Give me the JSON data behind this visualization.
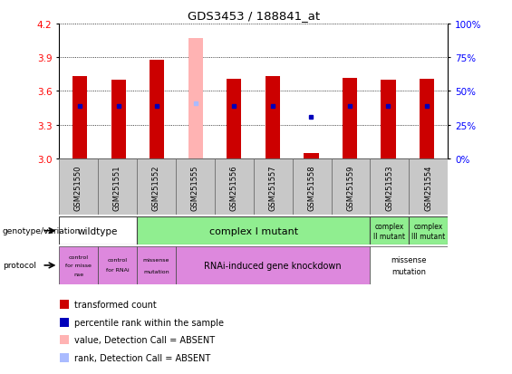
{
  "title": "GDS3453 / 188841_at",
  "samples": [
    "GSM251550",
    "GSM251551",
    "GSM251552",
    "GSM251555",
    "GSM251556",
    "GSM251557",
    "GSM251558",
    "GSM251559",
    "GSM251553",
    "GSM251554"
  ],
  "red_values": [
    3.73,
    3.7,
    3.88,
    4.07,
    3.71,
    3.73,
    3.05,
    3.72,
    3.7,
    3.71
  ],
  "blue_values": [
    3.47,
    3.47,
    3.47,
    3.49,
    3.47,
    3.47,
    3.37,
    3.47,
    3.47,
    3.47
  ],
  "absent": [
    false,
    false,
    false,
    true,
    false,
    false,
    false,
    false,
    false,
    false
  ],
  "ymin": 3.0,
  "ymax": 4.2,
  "yticks": [
    3.0,
    3.3,
    3.6,
    3.9,
    4.2
  ],
  "y2ticks": [
    0,
    25,
    50,
    75,
    100
  ],
  "bar_color_normal": "#cc0000",
  "bar_color_absent": "#ffb3b3",
  "blue_color_normal": "#0000bb",
  "blue_color_absent": "#aabbff",
  "wildtype_color": "#ffffff",
  "complex_I_color": "#90ee90",
  "complex_II_color": "#90ee90",
  "complex_III_color": "#90ee90",
  "protocol_purple_color": "#dd88dd",
  "protocol_white_color": "#ffffff",
  "sample_bg_color": "#c8c8c8",
  "legend_items": [
    [
      "#cc0000",
      "transformed count"
    ],
    [
      "#0000bb",
      "percentile rank within the sample"
    ],
    [
      "#ffb3b3",
      "value, Detection Call = ABSENT"
    ],
    [
      "#aabbff",
      "rank, Detection Call = ABSENT"
    ]
  ]
}
